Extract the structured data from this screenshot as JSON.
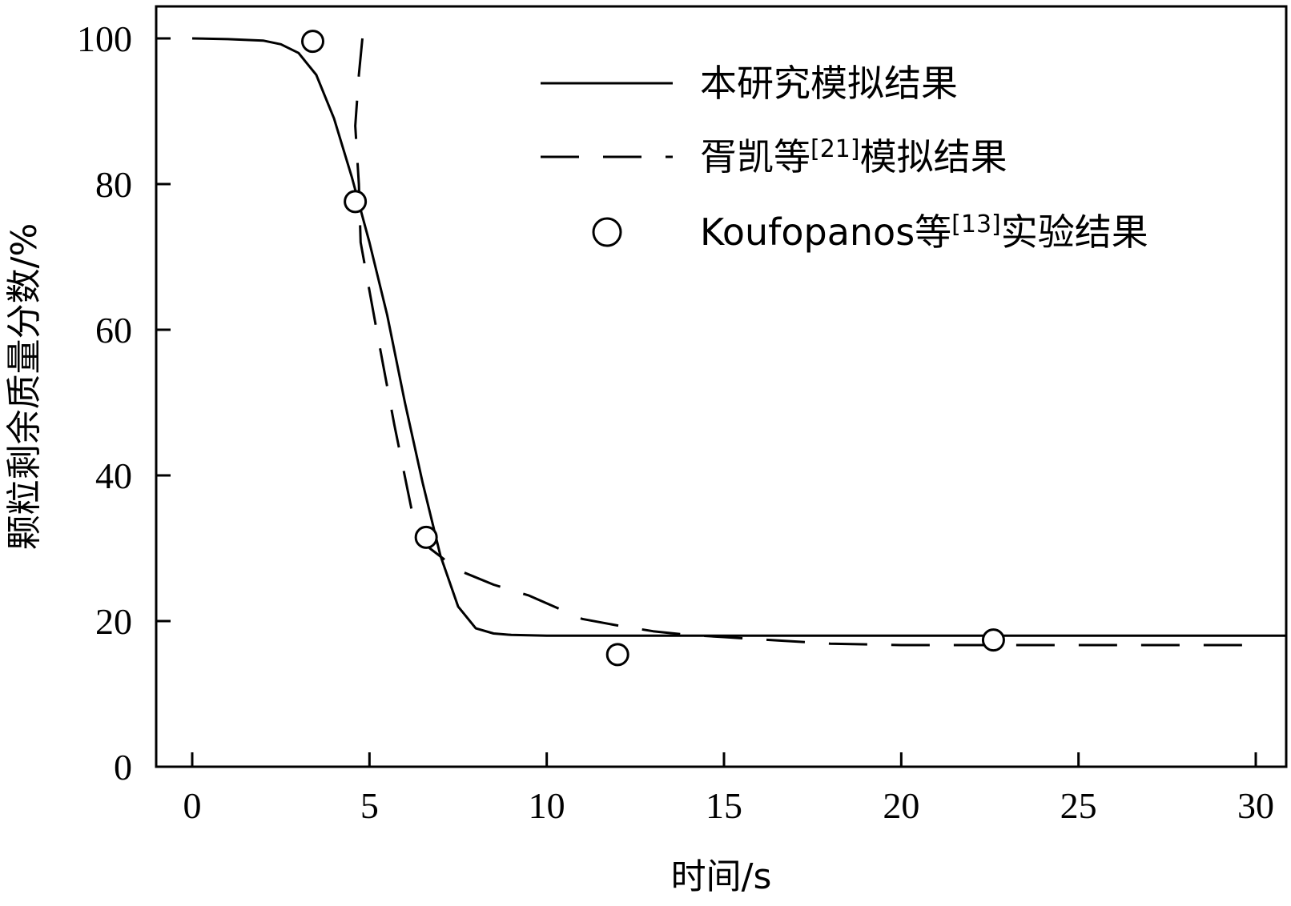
{
  "chart_data": {
    "type": "line",
    "xlabel": "时间/s",
    "ylabel": "颗粒剩余质量分数/%",
    "xlim": [
      -1,
      31
    ],
    "ylim": [
      0,
      105
    ],
    "xticks": [
      0,
      5,
      10,
      15,
      20,
      25,
      30
    ],
    "yticks": [
      0,
      20,
      40,
      60,
      80,
      100
    ],
    "grid": false,
    "legend_position": "top-right",
    "series": [
      {
        "name": "本研究模拟结果",
        "style": "solid",
        "x": [
          0,
          1,
          2,
          2.5,
          3,
          3.5,
          4,
          4.5,
          5,
          5.5,
          6,
          6.5,
          7,
          7.5,
          8,
          8.5,
          9,
          10,
          12,
          15,
          20,
          25,
          31
        ],
        "y": [
          100,
          99.9,
          99.7,
          99.2,
          98,
          95,
          89,
          81,
          72,
          62,
          50,
          39,
          29,
          22,
          19,
          18.3,
          18.1,
          18,
          18,
          18,
          18,
          18,
          18
        ]
      },
      {
        "name": "胥凯等",
        "name_sup": "[21]",
        "name_suffix": "模拟结果",
        "style": "dashed",
        "x": [
          4.8,
          4.7,
          4.6,
          4.7,
          4.75,
          5.2,
          5.7,
          6.2,
          6.7,
          7.5,
          8.5,
          9.5,
          10.3,
          11,
          12,
          13,
          14,
          15,
          16,
          17,
          18,
          20,
          25,
          30
        ],
        "y": [
          100,
          95,
          88,
          80,
          72,
          60,
          47,
          35,
          30,
          27,
          25,
          23.5,
          21.8,
          20.3,
          19.4,
          18.6,
          18.1,
          17.8,
          17.5,
          17.2,
          16.9,
          16.7,
          16.7,
          16.7
        ]
      },
      {
        "name": "Koufopanos等",
        "name_sup": "[13]",
        "name_suffix": "实验结果",
        "style": "marker",
        "x": [
          3.4,
          4.6,
          6.6,
          12.0,
          22.6
        ],
        "y": [
          99.6,
          77.6,
          31.5,
          15.4,
          17.4
        ]
      }
    ]
  }
}
